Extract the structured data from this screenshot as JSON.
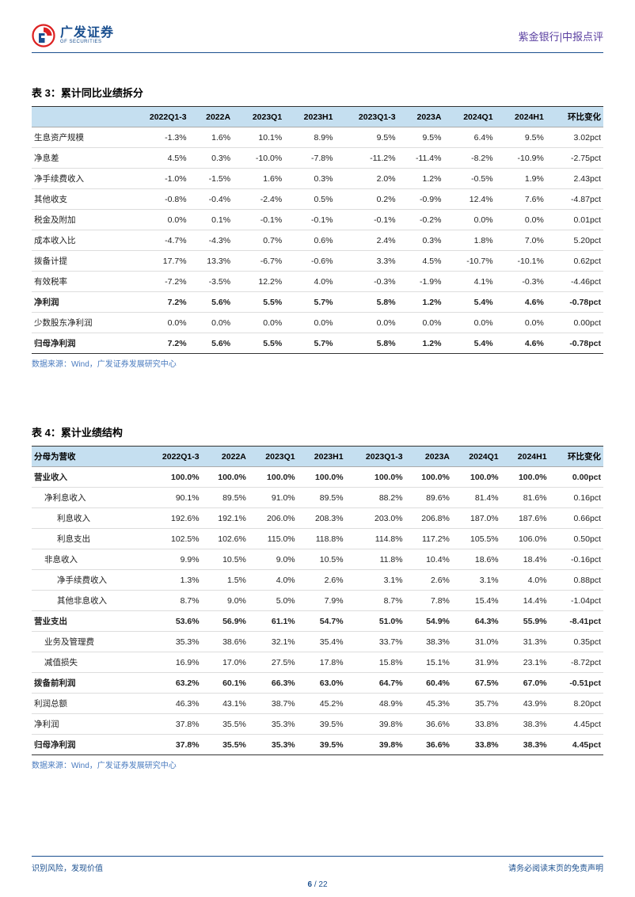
{
  "header": {
    "logo_cn": "广发证券",
    "logo_en": "GF SECURITIES",
    "right": "紫金银行|中报点评"
  },
  "table3": {
    "title": "表 3：累计同比业绩拆分",
    "columns": [
      "",
      "2022Q1-3",
      "2022A",
      "2023Q1",
      "2023H1",
      "2023Q1-3",
      "2023A",
      "2024Q1",
      "2024H1",
      "环比变化"
    ],
    "rows": [
      {
        "label": "生息资产规模",
        "vals": [
          "-1.3%",
          "1.6%",
          "10.1%",
          "8.9%",
          "9.5%",
          "9.5%",
          "6.4%",
          "9.5%",
          "3.02pct"
        ],
        "bold": false
      },
      {
        "label": "净息差",
        "vals": [
          "4.5%",
          "0.3%",
          "-10.0%",
          "-7.8%",
          "-11.2%",
          "-11.4%",
          "-8.2%",
          "-10.9%",
          "-2.75pct"
        ],
        "bold": false
      },
      {
        "label": "净手续费收入",
        "vals": [
          "-1.0%",
          "-1.5%",
          "1.6%",
          "0.3%",
          "2.0%",
          "1.2%",
          "-0.5%",
          "1.9%",
          "2.43pct"
        ],
        "bold": false
      },
      {
        "label": "其他收支",
        "vals": [
          "-0.8%",
          "-0.4%",
          "-2.4%",
          "0.5%",
          "0.2%",
          "-0.9%",
          "12.4%",
          "7.6%",
          "-4.87pct"
        ],
        "bold": false
      },
      {
        "label": "税金及附加",
        "vals": [
          "0.0%",
          "0.1%",
          "-0.1%",
          "-0.1%",
          "-0.1%",
          "-0.2%",
          "0.0%",
          "0.0%",
          "0.01pct"
        ],
        "bold": false
      },
      {
        "label": "成本收入比",
        "vals": [
          "-4.7%",
          "-4.3%",
          "0.7%",
          "0.6%",
          "2.4%",
          "0.3%",
          "1.8%",
          "7.0%",
          "5.20pct"
        ],
        "bold": false
      },
      {
        "label": "拨备计提",
        "vals": [
          "17.7%",
          "13.3%",
          "-6.7%",
          "-0.6%",
          "3.3%",
          "4.5%",
          "-10.7%",
          "-10.1%",
          "0.62pct"
        ],
        "bold": false
      },
      {
        "label": "有效税率",
        "vals": [
          "-7.2%",
          "-3.5%",
          "12.2%",
          "4.0%",
          "-0.3%",
          "-1.9%",
          "4.1%",
          "-0.3%",
          "-4.46pct"
        ],
        "bold": false
      },
      {
        "label": "净利润",
        "vals": [
          "7.2%",
          "5.6%",
          "5.5%",
          "5.7%",
          "5.8%",
          "1.2%",
          "5.4%",
          "4.6%",
          "-0.78pct"
        ],
        "bold": true
      },
      {
        "label": "少数股东净利润",
        "vals": [
          "0.0%",
          "0.0%",
          "0.0%",
          "0.0%",
          "0.0%",
          "0.0%",
          "0.0%",
          "0.0%",
          "0.00pct"
        ],
        "bold": false
      },
      {
        "label": "归母净利润",
        "vals": [
          "7.2%",
          "5.6%",
          "5.5%",
          "5.7%",
          "5.8%",
          "1.2%",
          "5.4%",
          "4.6%",
          "-0.78pct"
        ],
        "bold": true,
        "last": true
      }
    ],
    "source": "数据来源：Wind，广发证券发展研究中心"
  },
  "table4": {
    "title": "表 4：累计业绩结构",
    "columns": [
      "分母为营收",
      "2022Q1-3",
      "2022A",
      "2023Q1",
      "2023H1",
      "2023Q1-3",
      "2023A",
      "2024Q1",
      "2024H1",
      "环比变化"
    ],
    "rows": [
      {
        "label": "营业收入",
        "indent": 0,
        "vals": [
          "100.0%",
          "100.0%",
          "100.0%",
          "100.0%",
          "100.0%",
          "100.0%",
          "100.0%",
          "100.0%",
          "0.00pct"
        ],
        "bold": true
      },
      {
        "label": "净利息收入",
        "indent": 1,
        "vals": [
          "90.1%",
          "89.5%",
          "91.0%",
          "89.5%",
          "88.2%",
          "89.6%",
          "81.4%",
          "81.6%",
          "0.16pct"
        ],
        "bold": false
      },
      {
        "label": "利息收入",
        "indent": 2,
        "vals": [
          "192.6%",
          "192.1%",
          "206.0%",
          "208.3%",
          "203.0%",
          "206.8%",
          "187.0%",
          "187.6%",
          "0.66pct"
        ],
        "bold": false
      },
      {
        "label": "利息支出",
        "indent": 2,
        "vals": [
          "102.5%",
          "102.6%",
          "115.0%",
          "118.8%",
          "114.8%",
          "117.2%",
          "105.5%",
          "106.0%",
          "0.50pct"
        ],
        "bold": false
      },
      {
        "label": "非息收入",
        "indent": 1,
        "vals": [
          "9.9%",
          "10.5%",
          "9.0%",
          "10.5%",
          "11.8%",
          "10.4%",
          "18.6%",
          "18.4%",
          "-0.16pct"
        ],
        "bold": false
      },
      {
        "label": "净手续费收入",
        "indent": 2,
        "vals": [
          "1.3%",
          "1.5%",
          "4.0%",
          "2.6%",
          "3.1%",
          "2.6%",
          "3.1%",
          "4.0%",
          "0.88pct"
        ],
        "bold": false
      },
      {
        "label": "其他非息收入",
        "indent": 2,
        "vals": [
          "8.7%",
          "9.0%",
          "5.0%",
          "7.9%",
          "8.7%",
          "7.8%",
          "15.4%",
          "14.4%",
          "-1.04pct"
        ],
        "bold": false
      },
      {
        "label": "营业支出",
        "indent": 0,
        "vals": [
          "53.6%",
          "56.9%",
          "61.1%",
          "54.7%",
          "51.0%",
          "54.9%",
          "64.3%",
          "55.9%",
          "-8.41pct"
        ],
        "bold": true
      },
      {
        "label": "业务及管理费",
        "indent": 1,
        "vals": [
          "35.3%",
          "38.6%",
          "32.1%",
          "35.4%",
          "33.7%",
          "38.3%",
          "31.0%",
          "31.3%",
          "0.35pct"
        ],
        "bold": false
      },
      {
        "label": "减值损失",
        "indent": 1,
        "vals": [
          "16.9%",
          "17.0%",
          "27.5%",
          "17.8%",
          "15.8%",
          "15.1%",
          "31.9%",
          "23.1%",
          "-8.72pct"
        ],
        "bold": false
      },
      {
        "label": "拨备前利润",
        "indent": 0,
        "vals": [
          "63.2%",
          "60.1%",
          "66.3%",
          "63.0%",
          "64.7%",
          "60.4%",
          "67.5%",
          "67.0%",
          "-0.51pct"
        ],
        "bold": true
      },
      {
        "label": "利润总额",
        "indent": 0,
        "vals": [
          "46.3%",
          "43.1%",
          "38.7%",
          "45.2%",
          "48.9%",
          "45.3%",
          "35.7%",
          "43.9%",
          "8.20pct"
        ],
        "bold": false
      },
      {
        "label": "净利润",
        "indent": 0,
        "vals": [
          "37.8%",
          "35.5%",
          "35.3%",
          "39.5%",
          "39.8%",
          "36.6%",
          "33.8%",
          "38.3%",
          "4.45pct"
        ],
        "bold": false
      },
      {
        "label": "归母净利润",
        "indent": 0,
        "vals": [
          "37.8%",
          "35.5%",
          "35.3%",
          "39.5%",
          "39.8%",
          "36.6%",
          "33.8%",
          "38.3%",
          "4.45pct"
        ],
        "bold": true,
        "last": true
      }
    ],
    "source": "数据来源：Wind，广发证券发展研究中心"
  },
  "footer": {
    "left": "识别风险，发现价值",
    "right": "请务必阅读末页的免责声明",
    "page_cur": "6",
    "page_sep": " / ",
    "page_total": "22"
  },
  "colors": {
    "header_rule": "#1a4f8f",
    "thead_bg": "#c5dff0",
    "source_color": "#4a7bbf",
    "header_right_color": "#5a3fa0"
  }
}
